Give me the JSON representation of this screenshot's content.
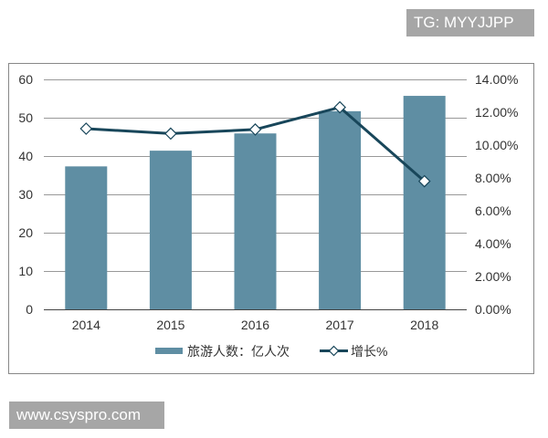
{
  "watermarks": {
    "top_right": "TG: MYYJJPP",
    "bottom_left": "www.csyspro.com"
  },
  "chart_data": {
    "type": "bar+line",
    "categories": [
      "2014",
      "2015",
      "2016",
      "2017",
      "2018"
    ],
    "series": [
      {
        "name": "旅游人数：亿人次",
        "type": "bar",
        "axis": "left",
        "values": [
          37.3,
          41.4,
          45.9,
          51.7,
          55.7
        ],
        "color": "#5f8ea3"
      },
      {
        "name": "增长%",
        "type": "line",
        "axis": "right",
        "values": [
          11.0,
          10.7,
          10.95,
          12.3,
          7.8
        ],
        "color": "#18465a",
        "marker": "diamond-white"
      }
    ],
    "left_axis": {
      "ylim": [
        0,
        60
      ],
      "ticks": [
        "0",
        "10",
        "20",
        "30",
        "40",
        "50",
        "60"
      ]
    },
    "right_axis": {
      "ylim": [
        0,
        14
      ],
      "ticks": [
        "0.00%",
        "2.00%",
        "4.00%",
        "6.00%",
        "8.00%",
        "10.00%",
        "12.00%",
        "14.00%"
      ]
    },
    "grid": true,
    "legend": "bottom"
  }
}
